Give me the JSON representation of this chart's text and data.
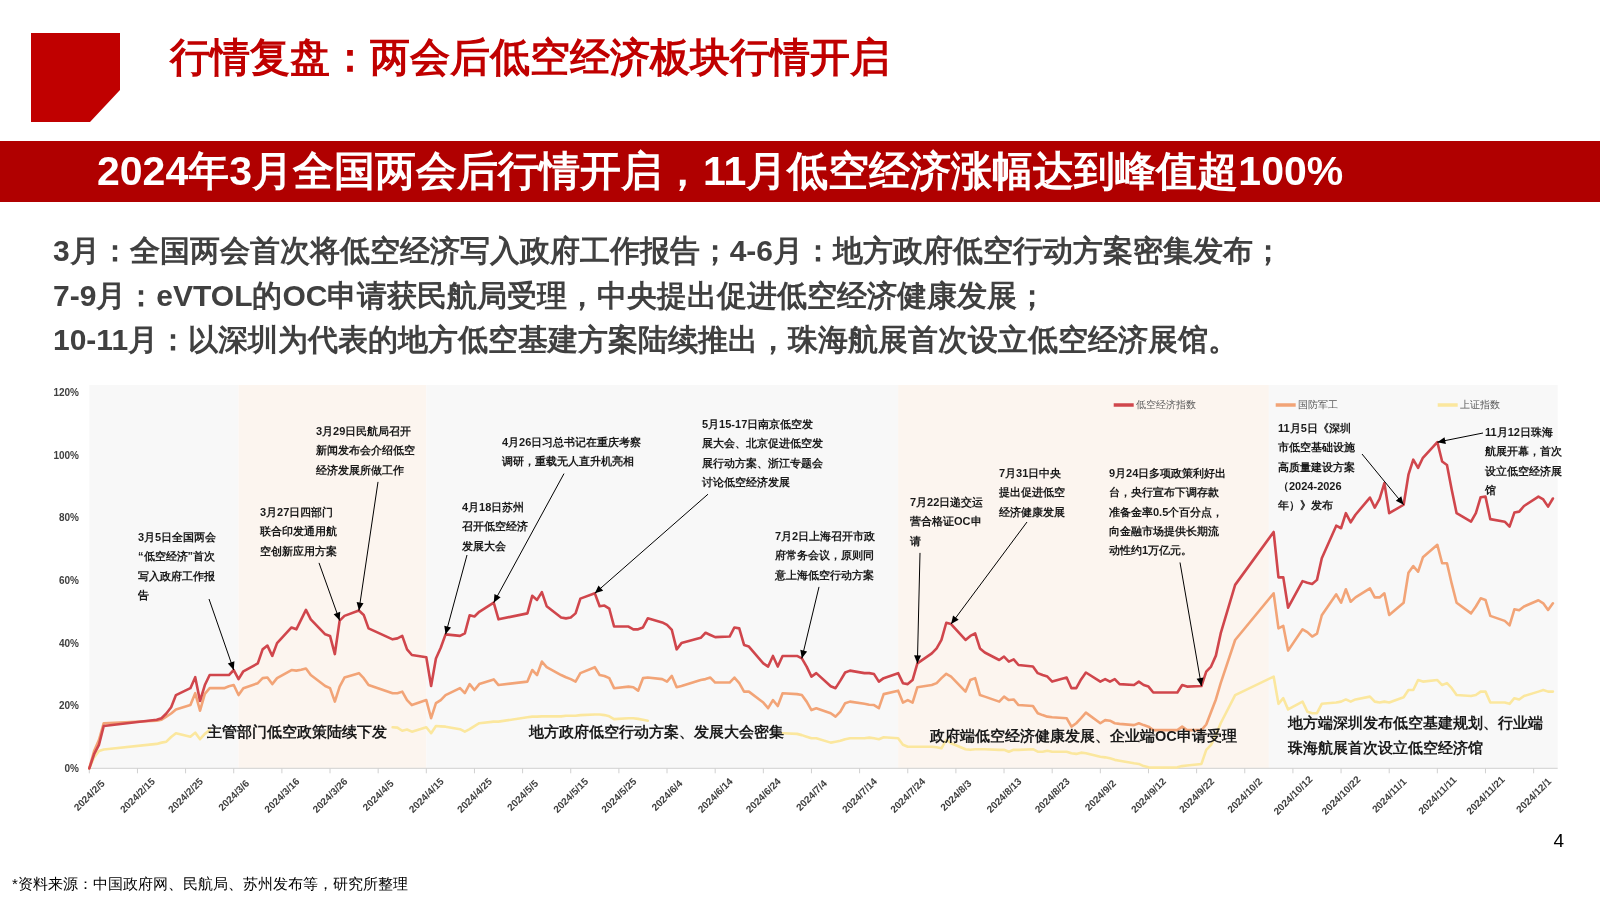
{
  "chart_data": {
    "type": "line",
    "title": "行情复盘：两会后低空经济板块行情开启",
    "subtitle": "2024年3月全国两会后行情开启，11月低空经济涨幅达到峰值超100%",
    "x": [
      "2024-02-05",
      "2024-02-06",
      "2024-02-07",
      "2024-02-08",
      "2024-02-19",
      "2024-02-20",
      "2024-02-21",
      "2024-02-22",
      "2024-02-23",
      "2024-02-26",
      "2024-02-27",
      "2024-02-28",
      "2024-02-29",
      "2024-03-01",
      "2024-03-04",
      "2024-03-05",
      "2024-03-06",
      "2024-03-07",
      "2024-03-08",
      "2024-03-11",
      "2024-03-12",
      "2024-03-13",
      "2024-03-14",
      "2024-03-15",
      "2024-03-18",
      "2024-03-19",
      "2024-03-20",
      "2024-03-21",
      "2024-03-22",
      "2024-03-25",
      "2024-03-26",
      "2024-03-27",
      "2024-03-28",
      "2024-03-29",
      "2024-04-01",
      "2024-04-02",
      "2024-04-03",
      "2024-04-08",
      "2024-04-09",
      "2024-04-10",
      "2024-04-11",
      "2024-04-12",
      "2024-04-15",
      "2024-04-16",
      "2024-04-17",
      "2024-04-18",
      "2024-04-19",
      "2024-04-22",
      "2024-04-23",
      "2024-04-24",
      "2024-04-25",
      "2024-04-26",
      "2024-04-29",
      "2024-04-30",
      "2024-05-06",
      "2024-05-07",
      "2024-05-08",
      "2024-05-09",
      "2024-05-10",
      "2024-05-13",
      "2024-05-14",
      "2024-05-15",
      "2024-05-16",
      "2024-05-17",
      "2024-05-20",
      "2024-05-21",
      "2024-05-22",
      "2024-05-23",
      "2024-05-24",
      "2024-05-27",
      "2024-05-28",
      "2024-05-29",
      "2024-05-30",
      "2024-05-31",
      "2024-06-03",
      "2024-06-04",
      "2024-06-05",
      "2024-06-06",
      "2024-06-07",
      "2024-06-11",
      "2024-06-12",
      "2024-06-13",
      "2024-06-14",
      "2024-06-17",
      "2024-06-18",
      "2024-06-19",
      "2024-06-20",
      "2024-06-21",
      "2024-06-24",
      "2024-06-25",
      "2024-06-26",
      "2024-06-27",
      "2024-06-28",
      "2024-07-01",
      "2024-07-02",
      "2024-07-03",
      "2024-07-04",
      "2024-07-05",
      "2024-07-08",
      "2024-07-09",
      "2024-07-10",
      "2024-07-11",
      "2024-07-12",
      "2024-07-15",
      "2024-07-16",
      "2024-07-17",
      "2024-07-18",
      "2024-07-19",
      "2024-07-22",
      "2024-07-23",
      "2024-07-24",
      "2024-07-25",
      "2024-07-26",
      "2024-07-29",
      "2024-07-30",
      "2024-07-31",
      "2024-08-01",
      "2024-08-02",
      "2024-08-05",
      "2024-08-06",
      "2024-08-07",
      "2024-08-08",
      "2024-08-09",
      "2024-08-12",
      "2024-08-13",
      "2024-08-14",
      "2024-08-15",
      "2024-08-16",
      "2024-08-19",
      "2024-08-20",
      "2024-08-21",
      "2024-08-22",
      "2024-08-23",
      "2024-08-26",
      "2024-08-27",
      "2024-08-28",
      "2024-08-29",
      "2024-08-30",
      "2024-09-02",
      "2024-09-03",
      "2024-09-04",
      "2024-09-05",
      "2024-09-06",
      "2024-09-09",
      "2024-09-10",
      "2024-09-11",
      "2024-09-12",
      "2024-09-13",
      "2024-09-18",
      "2024-09-19",
      "2024-09-20",
      "2024-09-23",
      "2024-09-24",
      "2024-09-25",
      "2024-09-26",
      "2024-09-27",
      "2024-09-30",
      "2024-10-08",
      "2024-10-09",
      "2024-10-10",
      "2024-10-11",
      "2024-10-14",
      "2024-10-15",
      "2024-10-16",
      "2024-10-17",
      "2024-10-18",
      "2024-10-21",
      "2024-10-22",
      "2024-10-23",
      "2024-10-24",
      "2024-10-25",
      "2024-10-28",
      "2024-10-29",
      "2024-10-30",
      "2024-10-31",
      "2024-11-01",
      "2024-11-04",
      "2024-11-05",
      "2024-11-06",
      "2024-11-07",
      "2024-11-08",
      "2024-11-11",
      "2024-11-12",
      "2024-11-13",
      "2024-11-14",
      "2024-11-15",
      "2024-11-18",
      "2024-11-19",
      "2024-11-20",
      "2024-11-21",
      "2024-11-22",
      "2024-11-25",
      "2024-11-26",
      "2024-11-27",
      "2024-11-28",
      "2024-11-29",
      "2024-12-02",
      "2024-12-03",
      "2024-12-04",
      "2024-12-05"
    ],
    "xlim": [
      "2024-02-05",
      "2024-12-06"
    ],
    "xticks": [
      {
        "value": "2024-02-05",
        "label": "2024/2/5"
      },
      {
        "value": "2024-02-15",
        "label": "2024/2/15"
      },
      {
        "value": "2024-02-25",
        "label": "2024/2/25"
      },
      {
        "value": "2024-03-06",
        "label": "2024/3/6"
      },
      {
        "value": "2024-03-16",
        "label": "2024/3/16"
      },
      {
        "value": "2024-03-26",
        "label": "2024/3/26"
      },
      {
        "value": "2024-04-05",
        "label": "2024/4/5"
      },
      {
        "value": "2024-04-15",
        "label": "2024/4/15"
      },
      {
        "value": "2024-04-25",
        "label": "2024/4/25"
      },
      {
        "value": "2024-05-05",
        "label": "2024/5/5"
      },
      {
        "value": "2024-05-15",
        "label": "2024/5/15"
      },
      {
        "value": "2024-05-25",
        "label": "2024/5/25"
      },
      {
        "value": "2024-06-04",
        "label": "2024/6/4"
      },
      {
        "value": "2024-06-14",
        "label": "2024/6/14"
      },
      {
        "value": "2024-06-24",
        "label": "2024/6/24"
      },
      {
        "value": "2024-07-04",
        "label": "2024/7/4"
      },
      {
        "value": "2024-07-14",
        "label": "2024/7/14"
      },
      {
        "value": "2024-07-24",
        "label": "2024/7/24"
      },
      {
        "value": "2024-08-03",
        "label": "2024/8/3"
      },
      {
        "value": "2024-08-13",
        "label": "2024/8/13"
      },
      {
        "value": "2024-08-23",
        "label": "2024/8/23"
      },
      {
        "value": "2024-09-02",
        "label": "2024/9/2"
      },
      {
        "value": "2024-09-12",
        "label": "2024/9/12"
      },
      {
        "value": "2024-09-22",
        "label": "2024/9/22"
      },
      {
        "value": "2024-10-02",
        "label": "2024/10/2"
      },
      {
        "value": "2024-10-12",
        "label": "2024/10/12"
      },
      {
        "value": "2024-10-22",
        "label": "2024/10/22"
      },
      {
        "value": "2024-11-01",
        "label": "2024/11/1"
      },
      {
        "value": "2024-11-11",
        "label": "2024/11/11"
      },
      {
        "value": "2024-11-21",
        "label": "2024/11/21"
      },
      {
        "value": "2024-12-01",
        "label": "2024/12/1"
      }
    ],
    "ylim": [
      0,
      120
    ],
    "yticks": [
      {
        "value": 0,
        "label": "0%"
      },
      {
        "value": 20,
        "label": "20%"
      },
      {
        "value": 40,
        "label": "40%"
      },
      {
        "value": 60,
        "label": "60%"
      },
      {
        "value": 80,
        "label": "80%"
      },
      {
        "value": 100,
        "label": "100%"
      },
      {
        "value": 120,
        "label": "120%"
      }
    ],
    "legend": "top right",
    "series": [
      {
        "name": "低空经济指数",
        "color": "#d0464c",
        "values": [
          0,
          4.5,
          7.5,
          13.5,
          15.5,
          16,
          17.5,
          19.5,
          23.4,
          25.6,
          29.1,
          21.5,
          26.6,
          29.8,
          29.8,
          29.8,
          31.4,
          28.5,
          31,
          33.5,
          38,
          39.2,
          35.9,
          40,
          45,
          44.4,
          47.5,
          50.6,
          47.6,
          42.8,
          42.3,
          36.5,
          47.2,
          48.7,
          50.4,
          49,
          44.7,
          41.2,
          41.5,
          42.3,
          38,
          36.2,
          35.5,
          26.3,
          35.1,
          38.5,
          42.8,
          42.3,
          43.1,
          48.9,
          48.5,
          50,
          52.9,
          47.6,
          49.5,
          55.1,
          53.8,
          56.3,
          51.8,
          48.2,
          47.9,
          48.2,
          49.5,
          54.2,
          55.9,
          51.8,
          52,
          51,
          45.3,
          45.3,
          44.4,
          44.4,
          45,
          47.9,
          46.6,
          45.8,
          44.2,
          38,
          40,
          41.7,
          43.3,
          42.6,
          41.9,
          42.1,
          45,
          44.7,
          39.4,
          38.9,
          33.5,
          32.5,
          35.9,
          32.5,
          35.9,
          35.9,
          35.1,
          32.5,
          29.3,
          30.4,
          26.2,
          25.6,
          28,
          30.6,
          31.2,
          30.4,
          30.4,
          30.1,
          27.7,
          28.8,
          30.4,
          27.2,
          26.9,
          28.2,
          33.5,
          36.7,
          38.3,
          41,
          46.5,
          46.1,
          41,
          42.3,
          43.1,
          38.3,
          37,
          34.6,
          35.7,
          34.1,
          34.8,
          33,
          32.5,
          30.4,
          29.8,
          29.3,
          27.7,
          29,
          25.6,
          25.6,
          28.4,
          30.6,
          27.7,
          28.5,
          27.7,
          28.5,
          26.9,
          26.6,
          27.7,
          26.6,
          26.1,
          24.2,
          24.2,
          26.6,
          26.1,
          26.3,
          30.9,
          32.5,
          36,
          43.1,
          58.6,
          75.5,
          61,
          61,
          51.3,
          59.8,
          59.3,
          58.9,
          60.2,
          67.1,
          77.5,
          76.7,
          81.5,
          78.6,
          81,
          86.5,
          83.3,
          86.1,
          91.1,
          81.5,
          84.2,
          93.8,
          98.6,
          96,
          99.2,
          104.2,
          98,
          96.9,
          88.9,
          81.5,
          78.8,
          81.5,
          86.6,
          86.8,
          79.6,
          78.8,
          77.2,
          81.7,
          82,
          83.8,
          86.8,
          85.9,
          83.6,
          86.2
        ]
      },
      {
        "name": "国防军工",
        "color": "#f2a477",
        "values": [
          0,
          5.5,
          9,
          14.4,
          15.2,
          15.5,
          16.5,
          17.5,
          18.8,
          20.2,
          24,
          18.4,
          23.8,
          25.6,
          25.6,
          26.2,
          26.6,
          23.4,
          25.6,
          27.2,
          28.8,
          29,
          26.9,
          28.8,
          31.4,
          31.2,
          31.5,
          31.9,
          29.8,
          26.3,
          25.6,
          21.3,
          26.1,
          29,
          30.4,
          28.8,
          26.6,
          24,
          24,
          24.5,
          21.8,
          20.2,
          21.8,
          16,
          20.8,
          21.8,
          23.4,
          25.6,
          24,
          26.9,
          25,
          26.9,
          28.4,
          26.6,
          27.7,
          31.4,
          29.8,
          34.1,
          32.3,
          29.8,
          29.1,
          28.5,
          27.7,
          30.4,
          32.3,
          29.8,
          29.5,
          28.8,
          25.6,
          26.1,
          25.9,
          24.8,
          28.8,
          29,
          28.5,
          27.7,
          29.5,
          25.9,
          26.3,
          28.2,
          28.5,
          29,
          27.4,
          27.4,
          29,
          27.2,
          24.5,
          24.5,
          21,
          19.2,
          21.8,
          19.9,
          24,
          23.7,
          23.4,
          21.3,
          18.6,
          19.2,
          17.6,
          16.5,
          18.1,
          20.8,
          21.3,
          20.6,
          20.3,
          20.2,
          19.2,
          23.7,
          24.8,
          21,
          21.8,
          21,
          25.9,
          26.6,
          27.2,
          28.8,
          30.2,
          29.3,
          24.5,
          28.2,
          28.8,
          23.4,
          22.9,
          21.3,
          22.9,
          21.8,
          22,
          20.2,
          19.9,
          17.6,
          17,
          16.5,
          16.3,
          16,
          13.3,
          14.4,
          16,
          17.8,
          14.4,
          15.4,
          15.2,
          14.4,
          14.2,
          13.8,
          14.4,
          13.8,
          13.3,
          12.2,
          12.2,
          13.3,
          12.2,
          12.2,
          14,
          18,
          22,
          27.2,
          41,
          55.9,
          44.7,
          45.5,
          37.6,
          44.4,
          43.5,
          42.1,
          43,
          48.9,
          55.6,
          52.9,
          57.2,
          53.2,
          54.6,
          57.5,
          54.6,
          54.6,
          55.9,
          49,
          52.9,
          62.5,
          64.6,
          62.8,
          67.4,
          71.4,
          65.5,
          65.5,
          58.9,
          52.9,
          49.5,
          51.7,
          54.3,
          53.8,
          48.7,
          47.1,
          45.7,
          50.8,
          50.5,
          51.7,
          53.7,
          52.7,
          50.6,
          52.7
        ]
      },
      {
        "name": "上证指数",
        "color": "#fbe79e",
        "values": [
          0,
          3.5,
          5.5,
          6,
          7.8,
          8.2,
          8.5,
          10,
          11.2,
          10.1,
          11.4,
          9.3,
          11,
          12.2,
          null,
          null,
          null,
          null,
          null,
          null,
          null,
          null,
          null,
          null,
          null,
          null,
          null,
          null,
          null,
          null,
          null,
          null,
          null,
          null,
          null,
          null,
          null,
          13.1,
          13,
          12,
          12.4,
          11.7,
          13.1,
          11.2,
          13.5,
          13.4,
          13.3,
          12.5,
          11.7,
          12.5,
          13.5,
          14.4,
          14.9,
          14.9,
          16.3,
          16.5,
          16.5,
          16.6,
          16.6,
          16.6,
          16.8,
          16.8,
          16.8,
          17,
          17.2,
          17.2,
          17,
          16.6,
          15.7,
          16,
          16,
          15.8,
          15.5,
          15.2,
          null,
          null,
          null,
          null,
          null,
          null,
          null,
          null,
          null,
          null,
          null,
          null,
          null,
          null,
          null,
          null,
          null,
          null,
          11.2,
          11,
          10.6,
          10.1,
          9.6,
          9.6,
          8.2,
          8.5,
          8.8,
          9.3,
          9.6,
          9.6,
          9.8,
          9.6,
          9.3,
          9.9,
          9.6,
          7.5,
          6.9,
          6.9,
          6.9,
          6.9,
          6.7,
          6.4,
          9.1,
          8,
          6.1,
          5.9,
          6.1,
          6.1,
          6.1,
          5.9,
          5.9,
          5.3,
          5.9,
          5.9,
          6.1,
          5.3,
          5.3,
          5.6,
          5.3,
          5.3,
          4.8,
          4.6,
          5,
          4.8,
          3.7,
          3.5,
          3.2,
          2.7,
          2.4,
          1.6,
          1.4,
          0.7,
          0.3,
          0.2,
          0.3,
          0.7,
          0.9,
          1.4,
          5.9,
          7.5,
          10.6,
          14.4,
          23.4,
          29.3,
          20.6,
          22.4,
          18.8,
          21.3,
          18.1,
          17.6,
          17.6,
          20.6,
          21,
          21.3,
          22,
          21.3,
          22,
          22.9,
          21.3,
          21,
          21.3,
          21,
          22.7,
          25,
          25,
          28.2,
          27.7,
          28.2,
          26.6,
          27.2,
          25.6,
          23.4,
          23.1,
          23.4,
          24.5,
          24.5,
          21,
          21,
          20.6,
          22.4,
          22,
          23.1,
          24.5,
          25,
          24.5,
          24.5
        ]
      }
    ],
    "bands": [
      {
        "axis": "x",
        "from": "2024-02-05",
        "to": "2024-03-07",
        "color": "#f8f8f8"
      },
      {
        "axis": "x",
        "from": "2024-03-07",
        "to": "2024-04-15",
        "color": "#fcf5ef",
        "label": "主管部门低空政策陆续下发"
      },
      {
        "axis": "x",
        "from": "2024-04-15",
        "to": "2024-07-22",
        "color": "#f8f8f8",
        "label": "地方政府低空行动方案、发展大会密集"
      },
      {
        "axis": "x",
        "from": "2024-07-22",
        "to": "2024-10-07",
        "color": "#fcf5ef",
        "label": "政府端低空经济健康发展、企业端OC申请受理"
      },
      {
        "axis": "x",
        "from": "2024-10-07",
        "to": "2024-12-06",
        "color": "#f8f8f8",
        "label": "地方端深圳发布低空基建规划、行业端珠海航展首次设立低空经济馆"
      }
    ],
    "annotations": [
      "3月：全国两会首次将低空经济写入政府工作报告；4-6月：地方政府低空行动方案密集发布；",
      "7-9月：eVTOL的OC申请获民航局受理，中央提出促进低空经济健康发展；",
      "10-11月：以深圳为代表的地方低空基建方案陆续推出，珠海航展首次设立低空经济展馆。",
      {
        "text": "3月5日全国两会“低空经济”首次写入政府工作报告",
        "x": "2024-03-06",
        "y": 31.4
      },
      {
        "text": "3月27日四部门联合印发通用航空创新应用方案",
        "x": "2024-03-28",
        "y": 47.2
      },
      {
        "text": "3月29日民航局召开新闻发布会介绍低空经济发展所做工作",
        "x": "2024-04-01",
        "y": 50.4
      },
      {
        "text": "4月18日苏州召开低空经济发展大会",
        "x": "2024-04-19",
        "y": 42.8
      },
      {
        "text": "4月26日习总书记在重庆考察调研，重载无人直升机亮相",
        "x": "2024-04-29",
        "y": 52.9
      },
      {
        "text": "5月15-17日南京低空发展大会、北京促进低空发展行动方案、浙江专题会讨论低空经济发展",
        "x": "2024-05-20",
        "y": 55.9
      },
      {
        "text": "7月2日上海召开市政府常务会议，原则同意上海低空行动方案",
        "x": "2024-07-02",
        "y": 35.1
      },
      {
        "text": "7月22日递交运营合格证OC申请",
        "x": "2024-07-26",
        "y": 33.5
      },
      {
        "text": "7月31日中央提出促进低空经济健康发展",
        "x": "2024-08-02",
        "y": 46.1
      },
      {
        "text": "9月24日多项政策利好出台，央行宣布下调存款准备金率0.5个百分点，向金融市场提供长期流动性约1万亿元。",
        "x": "2024-09-23",
        "y": 26.3
      },
      {
        "text": "11月5日《深圳市低空基础设施高质量建设方案（2024-2026年）》发布",
        "x": "2024-11-04",
        "y": 84.2
      },
      {
        "text": "11月12日珠海航展开幕，首次设立低空经济展馆",
        "x": "2024-11-11",
        "y": 104.2
      },
      "*资料来源：中国政府网、民航局、苏州发布等，研究所整理",
      "4"
    ]
  }
}
